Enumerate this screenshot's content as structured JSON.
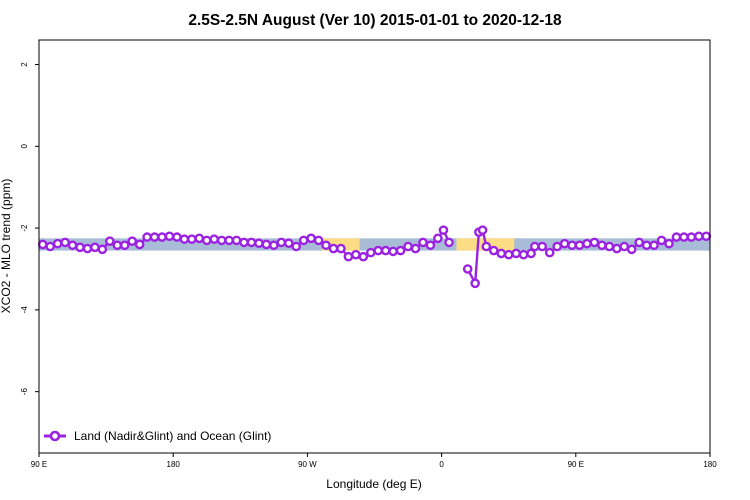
{
  "chart_data": {
    "type": "line",
    "title": "2.5S-2.5N August (Ver 10)   2015-01-01 to 2020-12-18",
    "xlabel": "Longitude (deg E)",
    "ylabel": "XCO2 - MLO trend (ppm)",
    "xlim": [
      90,
      450
    ],
    "ylim": [
      -7.5,
      2.6
    ],
    "x_ticks": [
      {
        "value": 90,
        "label": "90 E"
      },
      {
        "value": 162,
        "label": "180"
      },
      {
        "value": 234,
        "label": "90 W"
      },
      {
        "value": 306,
        "label": "0"
      },
      {
        "value": 378,
        "label": "90 E"
      },
      {
        "value": 450,
        "label": "180"
      }
    ],
    "y_ticks": [
      {
        "value": 2,
        "label": "2"
      },
      {
        "value": 0,
        "label": "0"
      },
      {
        "value": -2,
        "label": "-2"
      },
      {
        "value": -4,
        "label": "-4"
      },
      {
        "value": -6,
        "label": "-6"
      }
    ],
    "grid": false,
    "legend_position": "bottom-left",
    "band": {
      "lower": -2.55,
      "upper": -2.25,
      "color": "#a8bcd8",
      "highlight_color": "#fddc86",
      "highlight_ranges": [
        [
          242,
          262
        ],
        [
          314,
          345
        ]
      ]
    },
    "series": [
      {
        "name": "Land (Nadir&Glint) and Ocean (Glint)",
        "color": "#9b22e0",
        "segments": [
          {
            "x": [
              92,
              96,
              100,
              104,
              108,
              112,
              116,
              120,
              124,
              128,
              132,
              136,
              140,
              144,
              148,
              152,
              156,
              160,
              164,
              168,
              172,
              176,
              180,
              184,
              188,
              192,
              196,
              200,
              204,
              208,
              212,
              216,
              220,
              224,
              228,
              232,
              236,
              240,
              244,
              248,
              252,
              256,
              260,
              264,
              268,
              272,
              276,
              280,
              284,
              288,
              292,
              296,
              300,
              304,
              307,
              310
            ],
            "y": [
              -2.4,
              -2.45,
              -2.38,
              -2.35,
              -2.42,
              -2.47,
              -2.5,
              -2.47,
              -2.52,
              -2.32,
              -2.42,
              -2.42,
              -2.32,
              -2.4,
              -2.22,
              -2.22,
              -2.22,
              -2.2,
              -2.22,
              -2.27,
              -2.27,
              -2.25,
              -2.3,
              -2.27,
              -2.3,
              -2.3,
              -2.3,
              -2.35,
              -2.35,
              -2.37,
              -2.4,
              -2.42,
              -2.35,
              -2.37,
              -2.45,
              -2.3,
              -2.25,
              -2.3,
              -2.42,
              -2.5,
              -2.5,
              -2.7,
              -2.65,
              -2.7,
              -2.6,
              -2.55,
              -2.55,
              -2.57,
              -2.55,
              -2.45,
              -2.5,
              -2.35,
              -2.42,
              -2.25,
              -2.05,
              -2.35
            ]
          },
          {
            "x": [
              320,
              324,
              326,
              328,
              330,
              334,
              338,
              342,
              346,
              350,
              354,
              356,
              360,
              364,
              368,
              372,
              376,
              380,
              384,
              388,
              392,
              396,
              400,
              404,
              408,
              412,
              416,
              420,
              424,
              428,
              432,
              436,
              440,
              444,
              448
            ],
            "y": [
              -3.0,
              -3.35,
              -2.1,
              -2.05,
              -2.45,
              -2.55,
              -2.62,
              -2.65,
              -2.62,
              -2.65,
              -2.62,
              -2.45,
              -2.45,
              -2.6,
              -2.45,
              -2.38,
              -2.42,
              -2.42,
              -2.38,
              -2.35,
              -2.42,
              -2.45,
              -2.5,
              -2.45,
              -2.52,
              -2.35,
              -2.42,
              -2.42,
              -2.3,
              -2.38,
              -2.22,
              -2.22,
              -2.22,
              -2.2,
              -2.2
            ]
          }
        ]
      }
    ]
  }
}
